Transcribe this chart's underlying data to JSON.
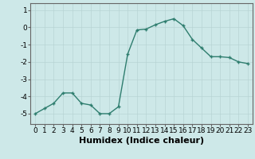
{
  "x": [
    0,
    1,
    2,
    3,
    4,
    5,
    6,
    7,
    8,
    9,
    10,
    11,
    12,
    13,
    14,
    15,
    16,
    17,
    18,
    19,
    20,
    21,
    22,
    23
  ],
  "y": [
    -5.0,
    -4.7,
    -4.4,
    -3.8,
    -3.8,
    -4.4,
    -4.5,
    -5.0,
    -5.0,
    -4.6,
    -1.55,
    -0.15,
    -0.1,
    0.15,
    0.35,
    0.5,
    0.1,
    -0.7,
    -1.2,
    -1.7,
    -1.7,
    -1.75,
    -2.0,
    -2.1
  ],
  "line_color": "#2e7d6e",
  "marker": "+",
  "bg_color": "#cde8e8",
  "grid_color": "#b8d4d4",
  "xlabel": "Humidex (Indice chaleur)",
  "xlim": [
    -0.5,
    23.5
  ],
  "ylim": [
    -5.6,
    1.4
  ],
  "yticks": [
    -5,
    -4,
    -3,
    -2,
    -1,
    0,
    1
  ],
  "xticks": [
    0,
    1,
    2,
    3,
    4,
    5,
    6,
    7,
    8,
    9,
    10,
    11,
    12,
    13,
    14,
    15,
    16,
    17,
    18,
    19,
    20,
    21,
    22,
    23
  ],
  "tick_fontsize": 6.5,
  "xlabel_fontsize": 8,
  "linewidth": 1.0,
  "marker_size": 3.5
}
